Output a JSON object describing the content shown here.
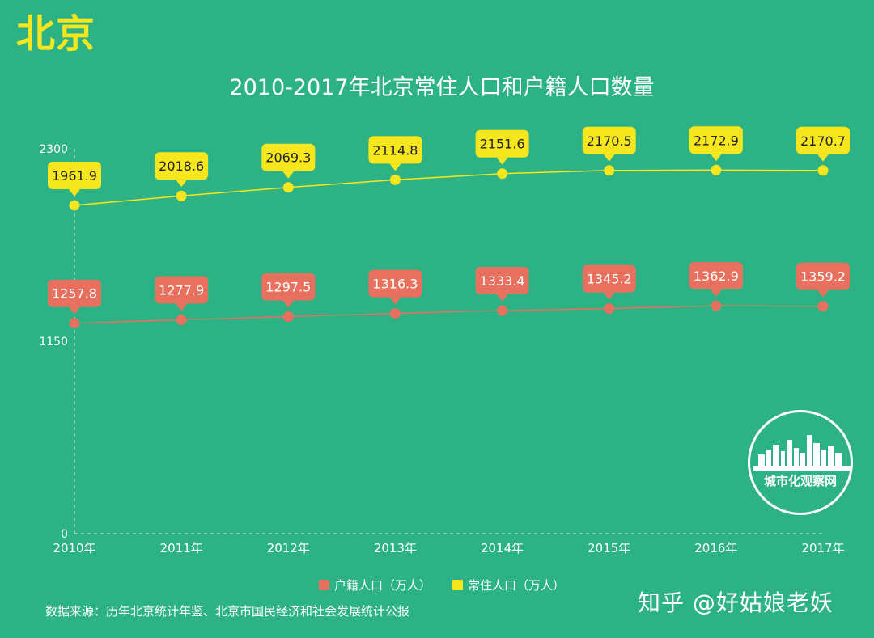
{
  "page": {
    "corner_title": "北京",
    "legend": {
      "series_a": "户籍人口（万人）",
      "series_b": "常住人口（万人）"
    },
    "source": "数据来源：历年北京统计年鉴、北京市国民经济和社会发展统计公报",
    "watermark": "知乎 @好姑娘老妖",
    "logo_text": "城市化观察网"
  },
  "colors": {
    "background": "#2DB285",
    "resident": "#F5E61E",
    "registered": "#E8705E",
    "axis": "#FFFFFF"
  },
  "chart_data": {
    "type": "line",
    "title": "2010-2017年北京常住人口和户籍人口数量",
    "xlabel": "",
    "ylabel": "",
    "categories": [
      "2010年",
      "2011年",
      "2012年",
      "2013年",
      "2014年",
      "2015年",
      "2016年",
      "2017年"
    ],
    "y_ticks": [
      "0",
      "1150",
      "2300"
    ],
    "ylim": [
      0,
      2300
    ],
    "grid": false,
    "legend_position": "bottom",
    "series": [
      {
        "name": "常住人口（万人）",
        "color": "#F5E61E",
        "values": [
          1961.9,
          2018.6,
          2069.3,
          2114.8,
          2151.6,
          2170.5,
          2172.9,
          2170.7
        ],
        "labels": [
          "1961.9",
          "2018.6",
          "2069.3",
          "2114.8",
          "2151.6",
          "2170.5",
          "2172.9",
          "2170.7"
        ]
      },
      {
        "name": "户籍人口（万人）",
        "color": "#E8705E",
        "values": [
          1257.8,
          1277.9,
          1297.5,
          1316.3,
          1333.4,
          1345.2,
          1362.9,
          1359.2
        ],
        "labels": [
          "1257.8",
          "1277.9",
          "1297.5",
          "1316.3",
          "1333.4",
          "1345.2",
          "1362.9",
          "1359.2"
        ]
      }
    ]
  }
}
